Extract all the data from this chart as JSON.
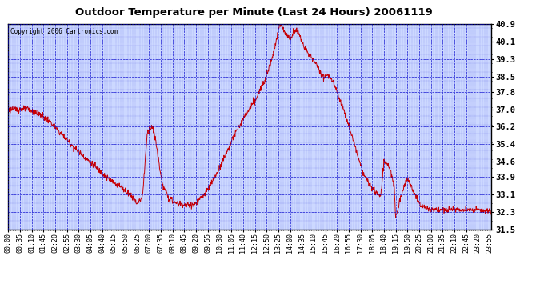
{
  "title": "Outdoor Temperature per Minute (Last 24 Hours) 20061119",
  "copyright_text": "Copyright 2006 Cartronics.com",
  "line_color": "#cc0000",
  "background_color": "#ccd8ff",
  "grid_color": "#0000cc",
  "border_color": "#000000",
  "yticks": [
    31.5,
    32.3,
    33.1,
    33.9,
    34.6,
    35.4,
    36.2,
    37.0,
    37.8,
    38.5,
    39.3,
    40.1,
    40.9
  ],
  "ylim": [
    31.5,
    40.9
  ],
  "xtick_labels": [
    "00:00",
    "00:35",
    "01:10",
    "01:45",
    "02:20",
    "02:55",
    "03:30",
    "04:05",
    "04:40",
    "05:15",
    "05:50",
    "06:25",
    "07:00",
    "07:35",
    "08:10",
    "08:45",
    "09:20",
    "09:55",
    "10:30",
    "11:05",
    "11:40",
    "12:15",
    "12:50",
    "13:25",
    "14:00",
    "14:35",
    "15:10",
    "15:45",
    "16:20",
    "16:55",
    "17:30",
    "18:05",
    "18:40",
    "19:15",
    "19:50",
    "20:25",
    "21:00",
    "21:35",
    "22:10",
    "22:45",
    "23:20",
    "23:55"
  ]
}
